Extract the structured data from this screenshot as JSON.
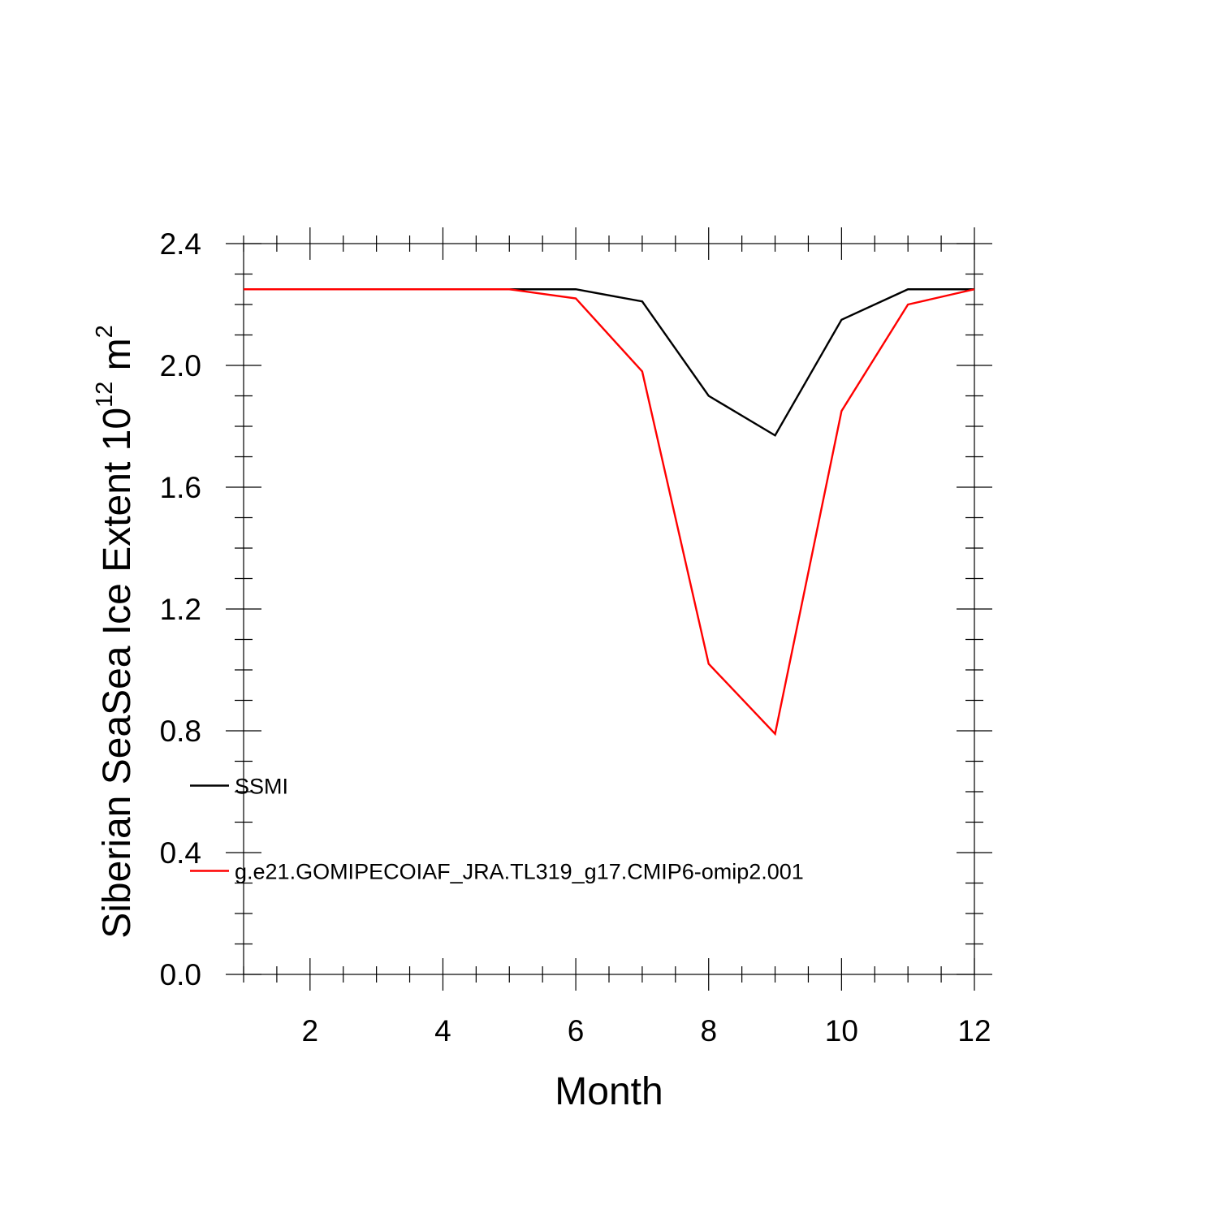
{
  "chart_data": {
    "type": "line",
    "title": "",
    "xlabel": "Month",
    "ylabel_main": "Siberian SeaSea Ice Extent 10",
    "ylabel_exp": "12",
    "ylabel_unit": " m",
    "ylabel_unit_exp": "2",
    "xlim": [
      1,
      12
    ],
    "ylim": [
      0,
      2.4
    ],
    "xticks_major": [
      2,
      4,
      6,
      8,
      10,
      12
    ],
    "xtick_labels": [
      "2",
      "4",
      "6",
      "8",
      "10",
      "12"
    ],
    "xticks_minor_step": 0.5,
    "yticks_major": [
      0,
      0.4,
      0.8,
      1.2,
      1.6,
      2.0,
      2.4
    ],
    "ytick_labels": [
      "0.0",
      "0.4",
      "0.8",
      "1.2",
      "1.6",
      "2.0",
      "2.4"
    ],
    "yticks_minor_step": 0.1,
    "grid": false,
    "legend_position": "left, inside plot",
    "x": [
      1,
      2,
      3,
      4,
      5,
      6,
      7,
      8,
      9,
      10,
      11,
      12
    ],
    "series": [
      {
        "name": "SSMI",
        "color": "#000000",
        "values": [
          2.25,
          2.25,
          2.25,
          2.25,
          2.25,
          2.25,
          2.21,
          1.9,
          1.77,
          2.15,
          2.25,
          2.25
        ]
      },
      {
        "name": "g.e21.GOMIPECOIAF_JRA.TL319_g17.CMIP6-omip2.001",
        "color": "#ff0000",
        "values": [
          2.25,
          2.25,
          2.25,
          2.25,
          2.25,
          2.22,
          1.98,
          1.02,
          0.79,
          1.85,
          2.2,
          2.25
        ]
      }
    ]
  }
}
